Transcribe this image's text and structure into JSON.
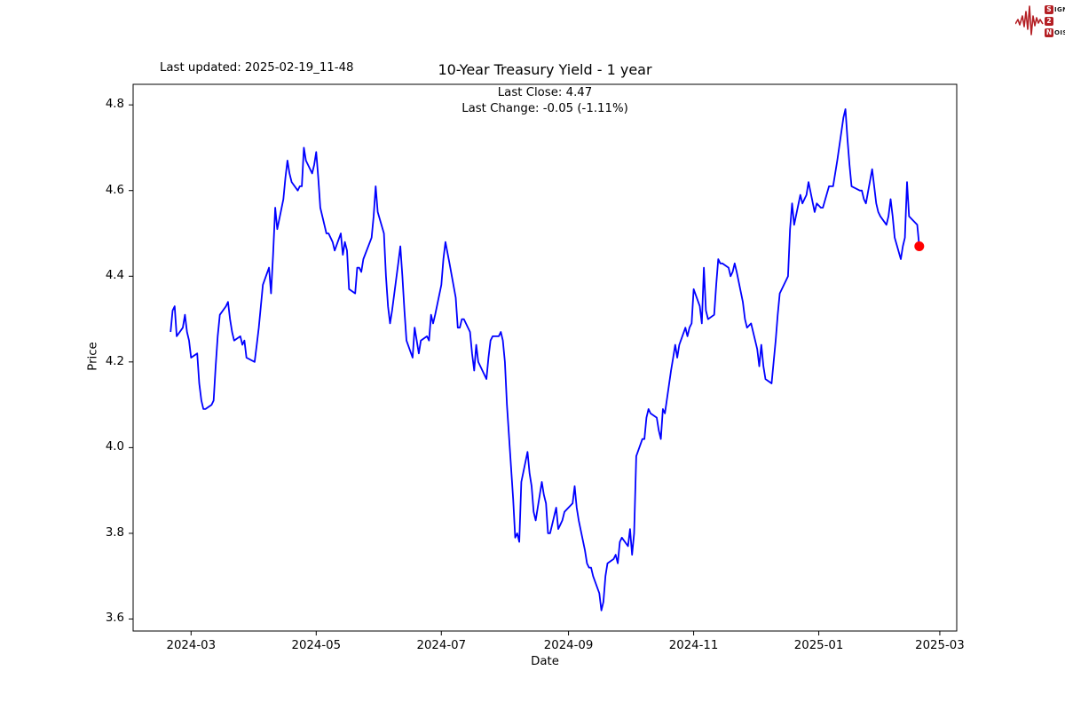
{
  "header": {
    "last_updated": "Last updated: 2025-02-19_11-48"
  },
  "logo": {
    "color": "#b41f24",
    "s": "S",
    "ignal": "IGNAL",
    "two": "2",
    "n": "N",
    "oise": "OISE"
  },
  "chart_data": {
    "type": "line",
    "title": "10-Year Treasury Yield - 1 year",
    "subtitle_line1": "Last Close: 4.47",
    "subtitle_line2": "Last Change: -0.05 (-1.11%)",
    "xlabel": "Date",
    "ylabel": "Price",
    "last_close": 4.47,
    "last_change": -0.05,
    "last_change_pct": "-1.11%",
    "line_color": "#0000ff",
    "last_point_color": "#ff0000",
    "grid": false,
    "legend": null,
    "ylim": [
      3.572,
      4.848
    ],
    "yticks": [
      3.6,
      3.8,
      4.0,
      4.2,
      4.4,
      4.6,
      4.8
    ],
    "xticks": [
      {
        "label": "2024-03",
        "date": "2024-03-01"
      },
      {
        "label": "2024-05",
        "date": "2024-05-01"
      },
      {
        "label": "2024-07",
        "date": "2024-07-01"
      },
      {
        "label": "2024-09",
        "date": "2024-09-01"
      },
      {
        "label": "2024-11",
        "date": "2024-11-01"
      },
      {
        "label": "2025-01",
        "date": "2025-01-01"
      },
      {
        "label": "2025-03",
        "date": "2025-03-01"
      }
    ],
    "series": {
      "name": "10-Year Treasury Yield",
      "points": [
        [
          "2024-02-20",
          4.27
        ],
        [
          "2024-02-21",
          4.32
        ],
        [
          "2024-02-22",
          4.33
        ],
        [
          "2024-02-23",
          4.26
        ],
        [
          "2024-02-26",
          4.28
        ],
        [
          "2024-02-27",
          4.31
        ],
        [
          "2024-02-28",
          4.27
        ],
        [
          "2024-02-29",
          4.25
        ],
        [
          "2024-03-01",
          4.21
        ],
        [
          "2024-03-04",
          4.22
        ],
        [
          "2024-03-05",
          4.15
        ],
        [
          "2024-03-06",
          4.11
        ],
        [
          "2024-03-07",
          4.09
        ],
        [
          "2024-03-08",
          4.09
        ],
        [
          "2024-03-11",
          4.1
        ],
        [
          "2024-03-12",
          4.11
        ],
        [
          "2024-03-13",
          4.19
        ],
        [
          "2024-03-14",
          4.26
        ],
        [
          "2024-03-15",
          4.31
        ],
        [
          "2024-03-18",
          4.33
        ],
        [
          "2024-03-19",
          4.34
        ],
        [
          "2024-03-20",
          4.3
        ],
        [
          "2024-03-21",
          4.27
        ],
        [
          "2024-03-22",
          4.25
        ],
        [
          "2024-03-25",
          4.26
        ],
        [
          "2024-03-26",
          4.24
        ],
        [
          "2024-03-27",
          4.25
        ],
        [
          "2024-03-28",
          4.21
        ],
        [
          "2024-04-01",
          4.2
        ],
        [
          "2024-04-02",
          4.24
        ],
        [
          "2024-04-03",
          4.28
        ],
        [
          "2024-04-04",
          4.33
        ],
        [
          "2024-04-05",
          4.38
        ],
        [
          "2024-04-08",
          4.42
        ],
        [
          "2024-04-09",
          4.36
        ],
        [
          "2024-04-10",
          4.45
        ],
        [
          "2024-04-11",
          4.56
        ],
        [
          "2024-04-12",
          4.51
        ],
        [
          "2024-04-15",
          4.58
        ],
        [
          "2024-04-16",
          4.63
        ],
        [
          "2024-04-17",
          4.67
        ],
        [
          "2024-04-18",
          4.64
        ],
        [
          "2024-04-19",
          4.62
        ],
        [
          "2024-04-22",
          4.6
        ],
        [
          "2024-04-23",
          4.61
        ],
        [
          "2024-04-24",
          4.61
        ],
        [
          "2024-04-25",
          4.7
        ],
        [
          "2024-04-26",
          4.67
        ],
        [
          "2024-04-29",
          4.64
        ],
        [
          "2024-04-30",
          4.66
        ],
        [
          "2024-05-01",
          4.69
        ],
        [
          "2024-05-02",
          4.63
        ],
        [
          "2024-05-03",
          4.56
        ],
        [
          "2024-05-06",
          4.5
        ],
        [
          "2024-05-07",
          4.5
        ],
        [
          "2024-05-08",
          4.49
        ],
        [
          "2024-05-09",
          4.48
        ],
        [
          "2024-05-10",
          4.46
        ],
        [
          "2024-05-13",
          4.5
        ],
        [
          "2024-05-14",
          4.45
        ],
        [
          "2024-05-15",
          4.48
        ],
        [
          "2024-05-16",
          4.46
        ],
        [
          "2024-05-17",
          4.37
        ],
        [
          "2024-05-20",
          4.36
        ],
        [
          "2024-05-21",
          4.42
        ],
        [
          "2024-05-22",
          4.42
        ],
        [
          "2024-05-23",
          4.41
        ],
        [
          "2024-05-24",
          4.44
        ],
        [
          "2024-05-28",
          4.49
        ],
        [
          "2024-05-29",
          4.54
        ],
        [
          "2024-05-30",
          4.61
        ],
        [
          "2024-05-31",
          4.55
        ],
        [
          "2024-06-03",
          4.5
        ],
        [
          "2024-06-04",
          4.4
        ],
        [
          "2024-06-05",
          4.33
        ],
        [
          "2024-06-06",
          4.29
        ],
        [
          "2024-06-07",
          4.32
        ],
        [
          "2024-06-10",
          4.43
        ],
        [
          "2024-06-11",
          4.47
        ],
        [
          "2024-06-12",
          4.4
        ],
        [
          "2024-06-13",
          4.32
        ],
        [
          "2024-06-14",
          4.25
        ],
        [
          "2024-06-17",
          4.21
        ],
        [
          "2024-06-18",
          4.28
        ],
        [
          "2024-06-20",
          4.22
        ],
        [
          "2024-06-21",
          4.25
        ],
        [
          "2024-06-24",
          4.26
        ],
        [
          "2024-06-25",
          4.25
        ],
        [
          "2024-06-26",
          4.31
        ],
        [
          "2024-06-27",
          4.29
        ],
        [
          "2024-06-28",
          4.31
        ],
        [
          "2024-07-01",
          4.38
        ],
        [
          "2024-07-02",
          4.44
        ],
        [
          "2024-07-03",
          4.48
        ],
        [
          "2024-07-05",
          4.43
        ],
        [
          "2024-07-08",
          4.35
        ],
        [
          "2024-07-09",
          4.28
        ],
        [
          "2024-07-10",
          4.28
        ],
        [
          "2024-07-11",
          4.3
        ],
        [
          "2024-07-12",
          4.3
        ],
        [
          "2024-07-15",
          4.27
        ],
        [
          "2024-07-16",
          4.22
        ],
        [
          "2024-07-17",
          4.18
        ],
        [
          "2024-07-18",
          4.24
        ],
        [
          "2024-07-19",
          4.2
        ],
        [
          "2024-07-22",
          4.17
        ],
        [
          "2024-07-23",
          4.16
        ],
        [
          "2024-07-24",
          4.21
        ],
        [
          "2024-07-25",
          4.25
        ],
        [
          "2024-07-26",
          4.26
        ],
        [
          "2024-07-29",
          4.26
        ],
        [
          "2024-07-30",
          4.27
        ],
        [
          "2024-07-31",
          4.25
        ],
        [
          "2024-08-01",
          4.2
        ],
        [
          "2024-08-02",
          4.1
        ],
        [
          "2024-08-05",
          3.88
        ],
        [
          "2024-08-06",
          3.79
        ],
        [
          "2024-08-07",
          3.8
        ],
        [
          "2024-08-08",
          3.78
        ],
        [
          "2024-08-09",
          3.92
        ],
        [
          "2024-08-12",
          3.99
        ],
        [
          "2024-08-13",
          3.94
        ],
        [
          "2024-08-14",
          3.91
        ],
        [
          "2024-08-15",
          3.85
        ],
        [
          "2024-08-16",
          3.83
        ],
        [
          "2024-08-19",
          3.92
        ],
        [
          "2024-08-20",
          3.89
        ],
        [
          "2024-08-21",
          3.87
        ],
        [
          "2024-08-22",
          3.8
        ],
        [
          "2024-08-23",
          3.8
        ],
        [
          "2024-08-26",
          3.86
        ],
        [
          "2024-08-27",
          3.81
        ],
        [
          "2024-08-28",
          3.82
        ],
        [
          "2024-08-29",
          3.83
        ],
        [
          "2024-08-30",
          3.85
        ],
        [
          "2024-09-03",
          3.87
        ],
        [
          "2024-09-04",
          3.91
        ],
        [
          "2024-09-05",
          3.86
        ],
        [
          "2024-09-06",
          3.83
        ],
        [
          "2024-09-09",
          3.76
        ],
        [
          "2024-09-10",
          3.73
        ],
        [
          "2024-09-11",
          3.72
        ],
        [
          "2024-09-12",
          3.72
        ],
        [
          "2024-09-13",
          3.7
        ],
        [
          "2024-09-16",
          3.66
        ],
        [
          "2024-09-17",
          3.62
        ],
        [
          "2024-09-18",
          3.64
        ],
        [
          "2024-09-19",
          3.7
        ],
        [
          "2024-09-20",
          3.73
        ],
        [
          "2024-09-23",
          3.74
        ],
        [
          "2024-09-24",
          3.75
        ],
        [
          "2024-09-25",
          3.73
        ],
        [
          "2024-09-26",
          3.78
        ],
        [
          "2024-09-27",
          3.79
        ],
        [
          "2024-09-30",
          3.77
        ],
        [
          "2024-10-01",
          3.81
        ],
        [
          "2024-10-02",
          3.75
        ],
        [
          "2024-10-03",
          3.8
        ],
        [
          "2024-10-04",
          3.98
        ],
        [
          "2024-10-07",
          4.02
        ],
        [
          "2024-10-08",
          4.02
        ],
        [
          "2024-10-09",
          4.07
        ],
        [
          "2024-10-10",
          4.09
        ],
        [
          "2024-10-11",
          4.08
        ],
        [
          "2024-10-14",
          4.07
        ],
        [
          "2024-10-15",
          4.04
        ],
        [
          "2024-10-16",
          4.02
        ],
        [
          "2024-10-17",
          4.09
        ],
        [
          "2024-10-18",
          4.08
        ],
        [
          "2024-10-21",
          4.18
        ],
        [
          "2024-10-22",
          4.21
        ],
        [
          "2024-10-23",
          4.24
        ],
        [
          "2024-10-24",
          4.21
        ],
        [
          "2024-10-25",
          4.24
        ],
        [
          "2024-10-28",
          4.28
        ],
        [
          "2024-10-29",
          4.26
        ],
        [
          "2024-10-30",
          4.28
        ],
        [
          "2024-10-31",
          4.29
        ],
        [
          "2024-11-01",
          4.37
        ],
        [
          "2024-11-04",
          4.33
        ],
        [
          "2024-11-05",
          4.29
        ],
        [
          "2024-11-06",
          4.42
        ],
        [
          "2024-11-07",
          4.32
        ],
        [
          "2024-11-08",
          4.3
        ],
        [
          "2024-11-11",
          4.31
        ],
        [
          "2024-11-12",
          4.38
        ],
        [
          "2024-11-13",
          4.44
        ],
        [
          "2024-11-14",
          4.43
        ],
        [
          "2024-11-15",
          4.43
        ],
        [
          "2024-11-18",
          4.42
        ],
        [
          "2024-11-19",
          4.4
        ],
        [
          "2024-11-20",
          4.41
        ],
        [
          "2024-11-21",
          4.43
        ],
        [
          "2024-11-22",
          4.41
        ],
        [
          "2024-11-25",
          4.34
        ],
        [
          "2024-11-26",
          4.3
        ],
        [
          "2024-11-27",
          4.28
        ],
        [
          "2024-11-29",
          4.29
        ],
        [
          "2024-12-02",
          4.23
        ],
        [
          "2024-12-03",
          4.19
        ],
        [
          "2024-12-04",
          4.24
        ],
        [
          "2024-12-05",
          4.19
        ],
        [
          "2024-12-06",
          4.16
        ],
        [
          "2024-12-09",
          4.15
        ],
        [
          "2024-12-10",
          4.2
        ],
        [
          "2024-12-11",
          4.25
        ],
        [
          "2024-12-12",
          4.31
        ],
        [
          "2024-12-13",
          4.36
        ],
        [
          "2024-12-16",
          4.39
        ],
        [
          "2024-12-17",
          4.4
        ],
        [
          "2024-12-18",
          4.51
        ],
        [
          "2024-12-19",
          4.57
        ],
        [
          "2024-12-20",
          4.52
        ],
        [
          "2024-12-23",
          4.59
        ],
        [
          "2024-12-24",
          4.57
        ],
        [
          "2024-12-26",
          4.59
        ],
        [
          "2024-12-27",
          4.62
        ],
        [
          "2024-12-30",
          4.55
        ],
        [
          "2024-12-31",
          4.57
        ],
        [
          "2025-01-02",
          4.56
        ],
        [
          "2025-01-03",
          4.56
        ],
        [
          "2025-01-06",
          4.61
        ],
        [
          "2025-01-07",
          4.61
        ],
        [
          "2025-01-08",
          4.61
        ],
        [
          "2025-01-10",
          4.67
        ],
        [
          "2025-01-13",
          4.77
        ],
        [
          "2025-01-14",
          4.79
        ],
        [
          "2025-01-15",
          4.72
        ],
        [
          "2025-01-16",
          4.66
        ],
        [
          "2025-01-17",
          4.61
        ],
        [
          "2025-01-21",
          4.6
        ],
        [
          "2025-01-22",
          4.6
        ],
        [
          "2025-01-23",
          4.58
        ],
        [
          "2025-01-24",
          4.57
        ],
        [
          "2025-01-27",
          4.65
        ],
        [
          "2025-01-28",
          4.61
        ],
        [
          "2025-01-29",
          4.57
        ],
        [
          "2025-01-30",
          4.55
        ],
        [
          "2025-01-31",
          4.54
        ],
        [
          "2025-02-03",
          4.52
        ],
        [
          "2025-02-04",
          4.54
        ],
        [
          "2025-02-05",
          4.58
        ],
        [
          "2025-02-06",
          4.54
        ],
        [
          "2025-02-07",
          4.49
        ],
        [
          "2025-02-10",
          4.44
        ],
        [
          "2025-02-11",
          4.47
        ],
        [
          "2025-02-12",
          4.49
        ],
        [
          "2025-02-13",
          4.62
        ],
        [
          "2025-02-14",
          4.54
        ],
        [
          "2025-02-18",
          4.52
        ],
        [
          "2025-02-19",
          4.47
        ]
      ]
    }
  }
}
